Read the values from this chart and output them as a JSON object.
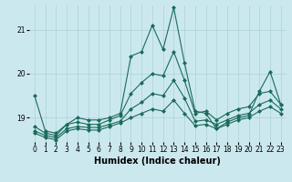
{
  "xlabel": "Humidex (Indice chaleur)",
  "bg_color": "#cce8ef",
  "grid_color": "#aad0d8",
  "line_color": "#1a6b5a",
  "xlim": [
    -0.5,
    23.5
  ],
  "ylim": [
    18.45,
    21.55
  ],
  "yticks": [
    19,
    20,
    21
  ],
  "xticks": [
    0,
    1,
    2,
    3,
    4,
    5,
    6,
    7,
    8,
    9,
    10,
    11,
    12,
    13,
    14,
    15,
    16,
    17,
    18,
    19,
    20,
    21,
    22,
    23
  ],
  "lines": [
    [
      19.5,
      18.7,
      18.65,
      18.85,
      19.0,
      18.95,
      18.95,
      19.0,
      19.1,
      20.4,
      20.5,
      21.1,
      20.55,
      21.5,
      20.25,
      19.15,
      19.1,
      18.75,
      18.9,
      19.0,
      19.05,
      19.6,
      20.05,
      19.3
    ],
    [
      18.8,
      18.65,
      18.6,
      18.85,
      18.9,
      18.85,
      18.85,
      18.95,
      19.05,
      19.55,
      19.8,
      20.0,
      19.95,
      20.5,
      19.85,
      19.1,
      19.15,
      18.95,
      19.1,
      19.2,
      19.25,
      19.55,
      19.6,
      19.3
    ],
    [
      18.7,
      18.6,
      18.55,
      18.75,
      18.8,
      18.78,
      18.78,
      18.85,
      18.92,
      19.2,
      19.35,
      19.55,
      19.5,
      19.85,
      19.45,
      18.92,
      18.95,
      18.85,
      18.95,
      19.05,
      19.1,
      19.3,
      19.4,
      19.2
    ],
    [
      18.65,
      18.55,
      18.5,
      18.7,
      18.75,
      18.72,
      18.72,
      18.8,
      18.88,
      19.0,
      19.1,
      19.2,
      19.15,
      19.4,
      19.1,
      18.82,
      18.85,
      18.75,
      18.85,
      18.95,
      19.0,
      19.15,
      19.25,
      19.1
    ]
  ],
  "marker": "D",
  "markersize": 2.0,
  "linewidth": 0.8,
  "label_fontsize": 7,
  "tick_fontsize": 5.5
}
